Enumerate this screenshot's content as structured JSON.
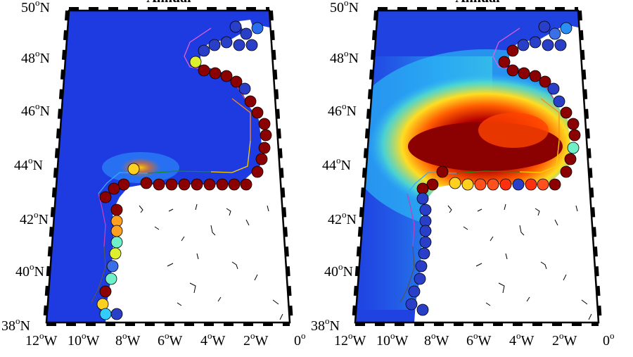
{
  "panels": [
    {
      "id": "left",
      "title": "Annual",
      "lat_labels": [
        "50",
        "48",
        "46",
        "44",
        "42",
        "40",
        "38"
      ],
      "lon_labels": [
        "12",
        "10",
        "8",
        "6",
        "4",
        "2",
        "0"
      ]
    },
    {
      "id": "right",
      "title": "Annual",
      "lat_labels": [
        "50",
        "48",
        "46",
        "44",
        "42",
        "40",
        "38"
      ],
      "lon_labels": [
        "12",
        "10",
        "8",
        "6",
        "4",
        "2",
        "0"
      ]
    }
  ],
  "units": {
    "lat_suffix": "N",
    "lon_suffix": "W",
    "zero_lon": "0",
    "degree": "o"
  },
  "map_extent": {
    "lon": [
      -12,
      0
    ],
    "lat": [
      38,
      50
    ]
  },
  "colormap": "jet",
  "colors": {
    "ocean_low": "#1a2fd6",
    "ocean_mid": "#33b8ff",
    "ocean_high": "#ffe033",
    "max": "#8b0000",
    "land": "#ffffff",
    "frame": "#000000"
  },
  "legend": null
}
